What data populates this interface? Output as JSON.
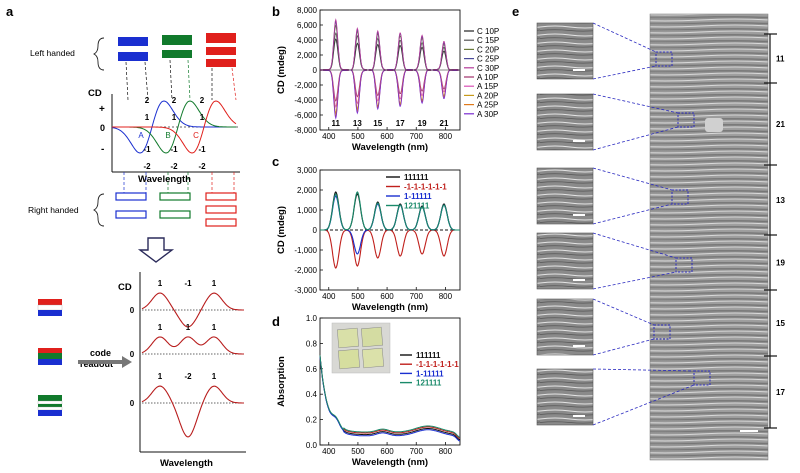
{
  "panels": {
    "a": {
      "label": "a",
      "left_handed_label": "Left handed",
      "right_handed_label": "Right handed",
      "cd_label": "CD",
      "wavelength_label": "Wavelength",
      "sign_plus": "+",
      "sign_zero": "0",
      "sign_minus": "-",
      "top_numbers": [
        "2",
        "2",
        "2"
      ],
      "mid_numbers": [
        "1",
        "1",
        "1"
      ],
      "letters": [
        "A",
        "B",
        "C"
      ],
      "low_numbers": [
        "-1",
        "-1",
        "-1"
      ],
      "bottom_numbers": [
        "-2",
        "-2",
        "-2"
      ],
      "code_readout": [
        "code",
        "readout"
      ],
      "readout_rows": [
        {
          "labels": [
            "1",
            "-1",
            "1"
          ],
          "zero": "0"
        },
        {
          "labels": [
            "1",
            "1",
            "1"
          ],
          "zero": "0"
        },
        {
          "labels": [
            "1",
            "-2",
            "1"
          ],
          "zero": "0"
        }
      ],
      "colors": {
        "blue": "#1a2fd0",
        "green": "#117a2c",
        "red": "#e0201c"
      }
    },
    "b": {
      "label": "b"
    },
    "c": {
      "label": "c"
    },
    "d": {
      "label": "d"
    },
    "e": {
      "label": "e",
      "brackets": [
        "11",
        "21",
        "13",
        "19",
        "15",
        "17"
      ]
    }
  },
  "chart_data": [
    {
      "type": "line",
      "id": "b",
      "xlabel": "Wavelength (nm)",
      "ylabel": "CD (mdeg)",
      "xlim": [
        370,
        850
      ],
      "ylim": [
        -8000,
        8000
      ],
      "xticks": [
        400,
        500,
        600,
        700,
        800
      ],
      "yticks": [
        8000,
        6000,
        4000,
        2000,
        0,
        -2000,
        -4000,
        -6000,
        -8000
      ],
      "ytick_labels": [
        "8,000",
        "6,000",
        "4,000",
        "2,000",
        "0",
        "-2,000",
        "-4,000",
        "-6,000",
        "-8,000"
      ],
      "peak_annotations": [
        {
          "x": 424,
          "text": "11"
        },
        {
          "x": 498,
          "text": "13"
        },
        {
          "x": 568,
          "text": "15"
        },
        {
          "x": 645,
          "text": "17"
        },
        {
          "x": 720,
          "text": "19"
        },
        {
          "x": 795,
          "text": "21"
        }
      ],
      "peak_positions": [
        424,
        498,
        568,
        645,
        720,
        795
      ],
      "legend": "right",
      "series": [
        {
          "name": "C 10P",
          "color": "#222222",
          "sign": 1,
          "amps": [
            4200,
            3600,
            3400,
            3200,
            3000,
            2600
          ]
        },
        {
          "name": "C 15P",
          "color": "#555555",
          "sign": 1,
          "amps": [
            5000,
            4600,
            4200,
            3900,
            3600,
            3100
          ]
        },
        {
          "name": "C 20P",
          "color": "#6b7b3a",
          "sign": 1,
          "amps": [
            6000,
            5200,
            4800,
            4500,
            4200,
            3500
          ]
        },
        {
          "name": "C 25P",
          "color": "#4a4a9a",
          "sign": 1,
          "amps": [
            6500,
            5400,
            5000,
            4800,
            4400,
            3700
          ]
        },
        {
          "name": "C 30P",
          "color": "#b43a9a",
          "sign": 1,
          "amps": [
            6800,
            5600,
            5200,
            4900,
            4600,
            3900
          ]
        },
        {
          "name": "A 10P",
          "color": "#a0306a",
          "sign": -1,
          "amps": [
            4200,
            3600,
            3400,
            3100,
            2800,
            2600
          ]
        },
        {
          "name": "A 15P",
          "color": "#d94fb5",
          "sign": -1,
          "amps": [
            5000,
            4500,
            4100,
            3800,
            3400,
            3000
          ]
        },
        {
          "name": "A 20P",
          "color": "#c79a1a",
          "sign": -1,
          "amps": [
            5800,
            5200,
            4800,
            4400,
            4000,
            3500
          ]
        },
        {
          "name": "A 25P",
          "color": "#e07a1a",
          "sign": -1,
          "amps": [
            6200,
            5500,
            5000,
            4600,
            4200,
            3700
          ]
        },
        {
          "name": "A 30P",
          "color": "#7a2ad0",
          "sign": -1,
          "amps": [
            6500,
            5800,
            5200,
            4800,
            4400,
            3900
          ]
        }
      ]
    },
    {
      "type": "line",
      "id": "c",
      "xlabel": "Wavelength (nm)",
      "ylabel": "CD (mdeg)",
      "xlim": [
        370,
        850
      ],
      "ylim": [
        -3000,
        3000
      ],
      "xticks": [
        400,
        500,
        600,
        700,
        800
      ],
      "yticks": [
        3000,
        2000,
        1000,
        0,
        -1000,
        -2000,
        -3000
      ],
      "ytick_labels": [
        "3,000",
        "2,000",
        "1,000",
        "0",
        "-1,000",
        "-2,000",
        "-3,000"
      ],
      "peak_positions": [
        424,
        498,
        568,
        645,
        720,
        795
      ],
      "legend": "top-right",
      "series": [
        {
          "name": "111111",
          "color": "#111111",
          "amps": [
            1900,
            1800,
            1400,
            1300,
            1200,
            1300
          ],
          "dash": false
        },
        {
          "name": "-1-1-1-1-1-1",
          "color": "#c0201c",
          "amps": [
            -1900,
            -1800,
            -1400,
            -1300,
            -1200,
            -1300
          ],
          "dash": false
        },
        {
          "name": "1-11111",
          "color": "#1a2fd0",
          "amps": [
            1700,
            -1200,
            1300,
            1250,
            1150,
            1250
          ],
          "dash": false
        },
        {
          "name": "121111",
          "color": "#1a8a6a",
          "amps": [
            1800,
            1900,
            1350,
            1250,
            1150,
            1250
          ],
          "dash": false
        }
      ]
    },
    {
      "type": "line",
      "id": "d",
      "xlabel": "Wavelength (nm)",
      "ylabel": "Absorption",
      "xlim": [
        370,
        850
      ],
      "ylim": [
        0,
        1.0
      ],
      "xticks": [
        400,
        500,
        600,
        700,
        800
      ],
      "yticks": [
        1.0,
        0.8,
        0.6,
        0.4,
        0.2,
        0.0
      ],
      "ytick_labels": [
        "1.0",
        "0.8",
        "0.6",
        "0.4",
        "0.2",
        "0.0"
      ],
      "legend": "top-right",
      "series": [
        {
          "name": "111111",
          "color": "#111111"
        },
        {
          "name": "-1-1-1-1-1-1",
          "color": "#c0201c"
        },
        {
          "name": "1-11111",
          "color": "#1a2fd0"
        },
        {
          "name": "121111",
          "color": "#1a8a6a"
        }
      ]
    }
  ]
}
